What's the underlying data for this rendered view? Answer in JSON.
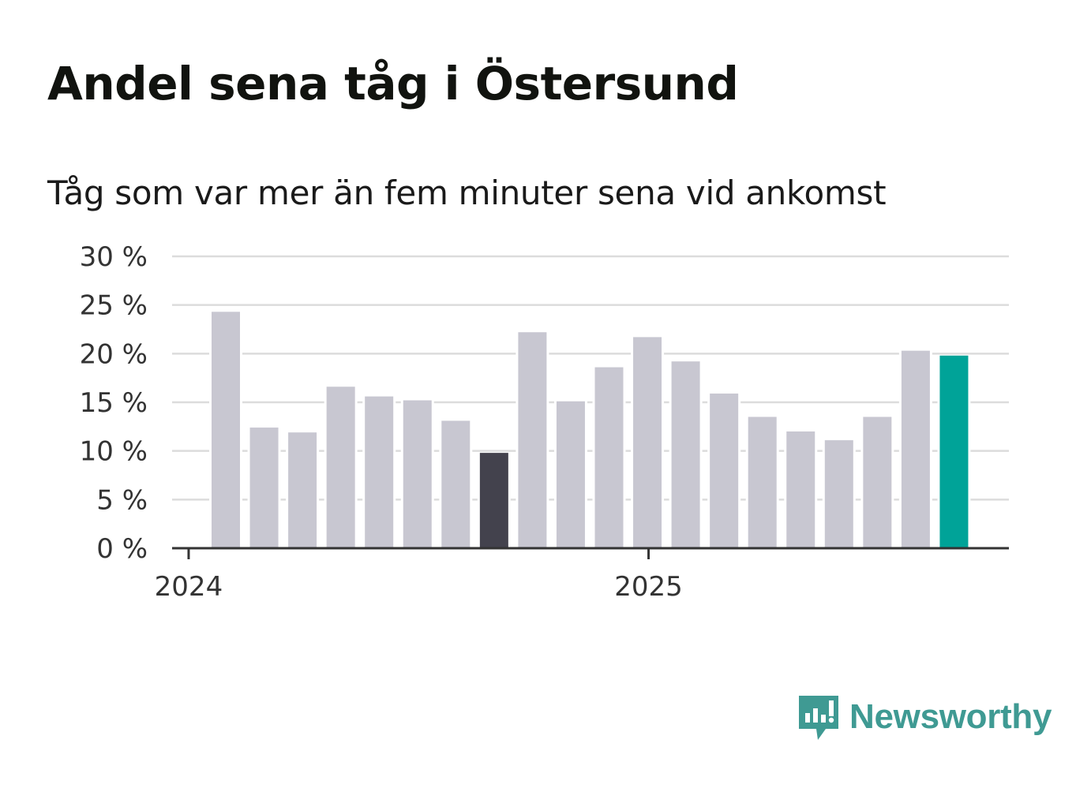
{
  "title": "Andel sena tåg i Östersund",
  "subtitle": "Tåg som var mer än fem minuter sena vid ankomst",
  "brand": {
    "name": "Newsworthy",
    "icon": "newsworthy-logo-icon",
    "color": "#3f9a93"
  },
  "colors": {
    "bar_default": "#c8c7d1",
    "bar_highlight_dark": "#43424d",
    "bar_highlight_current": "#00a398",
    "grid": "#dcdcdc",
    "axis": "#333333"
  },
  "chart_data": {
    "type": "bar",
    "title": "Andel sena tåg i Östersund",
    "subtitle": "Tåg som var mer än fem minuter sena vid ankomst",
    "xlabel": "",
    "ylabel": "",
    "ylim": [
      0,
      30
    ],
    "y_ticks": [
      0,
      5,
      10,
      15,
      20,
      25,
      30
    ],
    "y_tick_labels": [
      "0 %",
      "5 %",
      "10 %",
      "15 %",
      "20 %",
      "25 %",
      "30 %"
    ],
    "x_tick_labels": [
      {
        "label": "2024",
        "at_category": "2024-01"
      },
      {
        "label": "2025",
        "at_category": "2025-01"
      }
    ],
    "grid": true,
    "categories": [
      "2024-02",
      "2024-03",
      "2024-04",
      "2024-05",
      "2024-06",
      "2024-07",
      "2024-08",
      "2024-09",
      "2024-10",
      "2024-11",
      "2024-12",
      "2025-01",
      "2025-02",
      "2025-03",
      "2025-04",
      "2025-05",
      "2025-06",
      "2025-07",
      "2025-08",
      "2025-09"
    ],
    "values": [
      24.3,
      12.4,
      11.9,
      16.6,
      15.6,
      15.2,
      13.1,
      9.8,
      22.2,
      15.1,
      18.6,
      21.7,
      19.2,
      15.9,
      13.5,
      12.0,
      11.1,
      13.5,
      20.3,
      19.8
    ],
    "highlights": {
      "7": "dark",
      "19": "current"
    }
  }
}
